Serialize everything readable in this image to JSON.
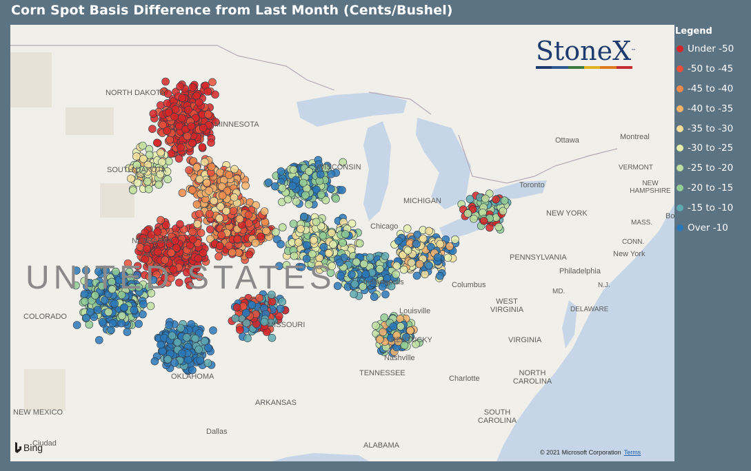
{
  "title": "Corn Spot Basis Difference from Last Month (Cents/Bushel)",
  "legend": {
    "title": "Legend",
    "items": [
      {
        "label": "Under -50",
        "color": "#d62728"
      },
      {
        "label": "-50 to -45",
        "color": "#e8503a"
      },
      {
        "label": "-45 to -40",
        "color": "#f08a4b"
      },
      {
        "label": "-40 to -35",
        "color": "#f6b26b"
      },
      {
        "label": "-35 to -30",
        "color": "#f5df9a"
      },
      {
        "label": "-30 to -25",
        "color": "#e6efae"
      },
      {
        "label": "-25 to -20",
        "color": "#bfe0a0"
      },
      {
        "label": "-20 to -15",
        "color": "#93cc94"
      },
      {
        "label": "-15 to -10",
        "color": "#5fa9b0"
      },
      {
        "label": "Over -10",
        "color": "#2b78b8"
      }
    ]
  },
  "logo": {
    "text": "StoneX",
    "tm": "™"
  },
  "map_labels": {
    "north_dakota": "NORTH DAKOTA",
    "minnesota": "MINNESOTA",
    "south_dakota": "SOUTH DAKOTA",
    "wisconsin": "WISCONSIN",
    "michigan": "MICHIGAN",
    "nebraska": "NEBRASKA",
    "chicago": "Chicago",
    "ottawa": "Ottawa",
    "montreal": "Montreal",
    "vermont": "VERMONT",
    "new_hampshire": "NEW HAMPSHIRE",
    "toronto": "Toronto",
    "new_york_state": "NEW YORK",
    "mass": "MASS.",
    "conn": "CONN.",
    "new_york": "New York",
    "pennsylvania": "PENNSYLVANIA",
    "philadelphia": "Philadelphia",
    "nj": "N.J.",
    "md": "MD.",
    "delaware": "DELAWARE",
    "united_states": "UNITED STATES",
    "colorado": "COLORADO",
    "missouri": "MISSOURI",
    "indianapolis": "Indianapolis",
    "columbus": "Columbus",
    "west_virginia": "WEST VIRGINIA",
    "louisville": "Louisville",
    "kentucky": "KENTUCKY",
    "virginia": "VIRGINIA",
    "nashville": "Nashville",
    "oklahoma": "OKLAHOMA",
    "tennessee": "TENNESSEE",
    "charlotte": "Charlotte",
    "north_carolina": "NORTH CAROLINA",
    "arkansas": "ARKANSAS",
    "new_mexico": "NEW MEXICO",
    "south_carolina": "SOUTH CAROLINA",
    "dallas": "Dallas",
    "ciudad": "Ciudad",
    "alabama": "ALABAMA",
    "bo": "Bo"
  },
  "footer": {
    "bing": "Bing",
    "copyright": "© 2021 Microsoft Corporation",
    "terms": "Terms"
  }
}
